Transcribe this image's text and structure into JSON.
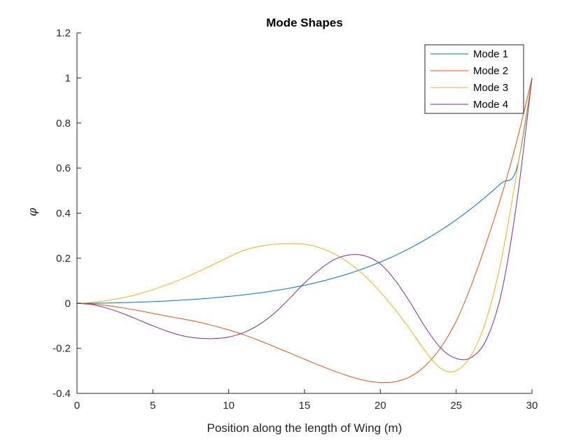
{
  "chart_data": {
    "type": "line",
    "title": "Mode Shapes",
    "xlabel": "Position along the length of Wing (m)",
    "ylabel": "φ",
    "xlim": [
      0,
      30
    ],
    "ylim": [
      -0.4,
      1.2
    ],
    "xticks": [
      0,
      5,
      10,
      15,
      20,
      25,
      30
    ],
    "yticks": [
      -0.4,
      -0.2,
      0,
      0.2,
      0.4,
      0.6,
      0.8,
      1,
      1.2
    ],
    "grid": false,
    "legend_position": "top-right",
    "x": [
      0,
      1,
      2,
      3,
      4,
      5,
      6,
      7,
      8,
      9,
      10,
      11,
      12,
      13,
      14,
      15,
      16,
      17,
      18,
      19,
      20,
      21,
      22,
      23,
      24,
      25,
      26,
      27,
      28,
      29,
      30
    ],
    "series": [
      {
        "name": "Mode 1",
        "color": "#0072BD",
        "values": [
          0,
          0.0003,
          0.0012,
          0.0026,
          0.0046,
          0.0072,
          0.0104,
          0.0143,
          0.0188,
          0.0241,
          0.0302,
          0.0374,
          0.0457,
          0.0554,
          0.0668,
          0.08,
          0.0953,
          0.113,
          0.1333,
          0.1565,
          0.1829,
          0.2126,
          0.246,
          0.2833,
          0.3247,
          0.3704,
          0.4205,
          0.4752,
          0.5348,
          0.5993,
          1.0
        ]
      },
      {
        "name": "Mode 2",
        "color": "#D95319",
        "values": [
          0,
          -0.003,
          -0.01,
          -0.02,
          -0.032,
          -0.045,
          -0.058,
          -0.07,
          -0.083,
          -0.1,
          -0.118,
          -0.14,
          -0.165,
          -0.192,
          -0.22,
          -0.248,
          -0.276,
          -0.302,
          -0.325,
          -0.343,
          -0.352,
          -0.348,
          -0.325,
          -0.275,
          -0.195,
          -0.08,
          0.08,
          0.27,
          0.48,
          0.72,
          1.0
        ]
      },
      {
        "name": "Mode 3",
        "color": "#EDB120",
        "values": [
          0,
          0.004,
          0.012,
          0.024,
          0.04,
          0.06,
          0.084,
          0.11,
          0.14,
          0.172,
          0.205,
          0.235,
          0.252,
          0.262,
          0.265,
          0.262,
          0.246,
          0.218,
          0.176,
          0.12,
          0.05,
          -0.03,
          -0.12,
          -0.215,
          -0.29,
          -0.3,
          -0.23,
          -0.07,
          0.2,
          0.58,
          1.0
        ]
      },
      {
        "name": "Mode 4",
        "color": "#7E2F8E",
        "values": [
          0,
          -0.006,
          -0.022,
          -0.045,
          -0.072,
          -0.1,
          -0.125,
          -0.145,
          -0.155,
          -0.157,
          -0.15,
          -0.13,
          -0.095,
          -0.045,
          0.02,
          0.09,
          0.15,
          0.195,
          0.215,
          0.21,
          0.175,
          0.1,
          0.0,
          -0.11,
          -0.2,
          -0.245,
          -0.24,
          -0.16,
          0.05,
          0.45,
          1.0
        ]
      }
    ]
  }
}
